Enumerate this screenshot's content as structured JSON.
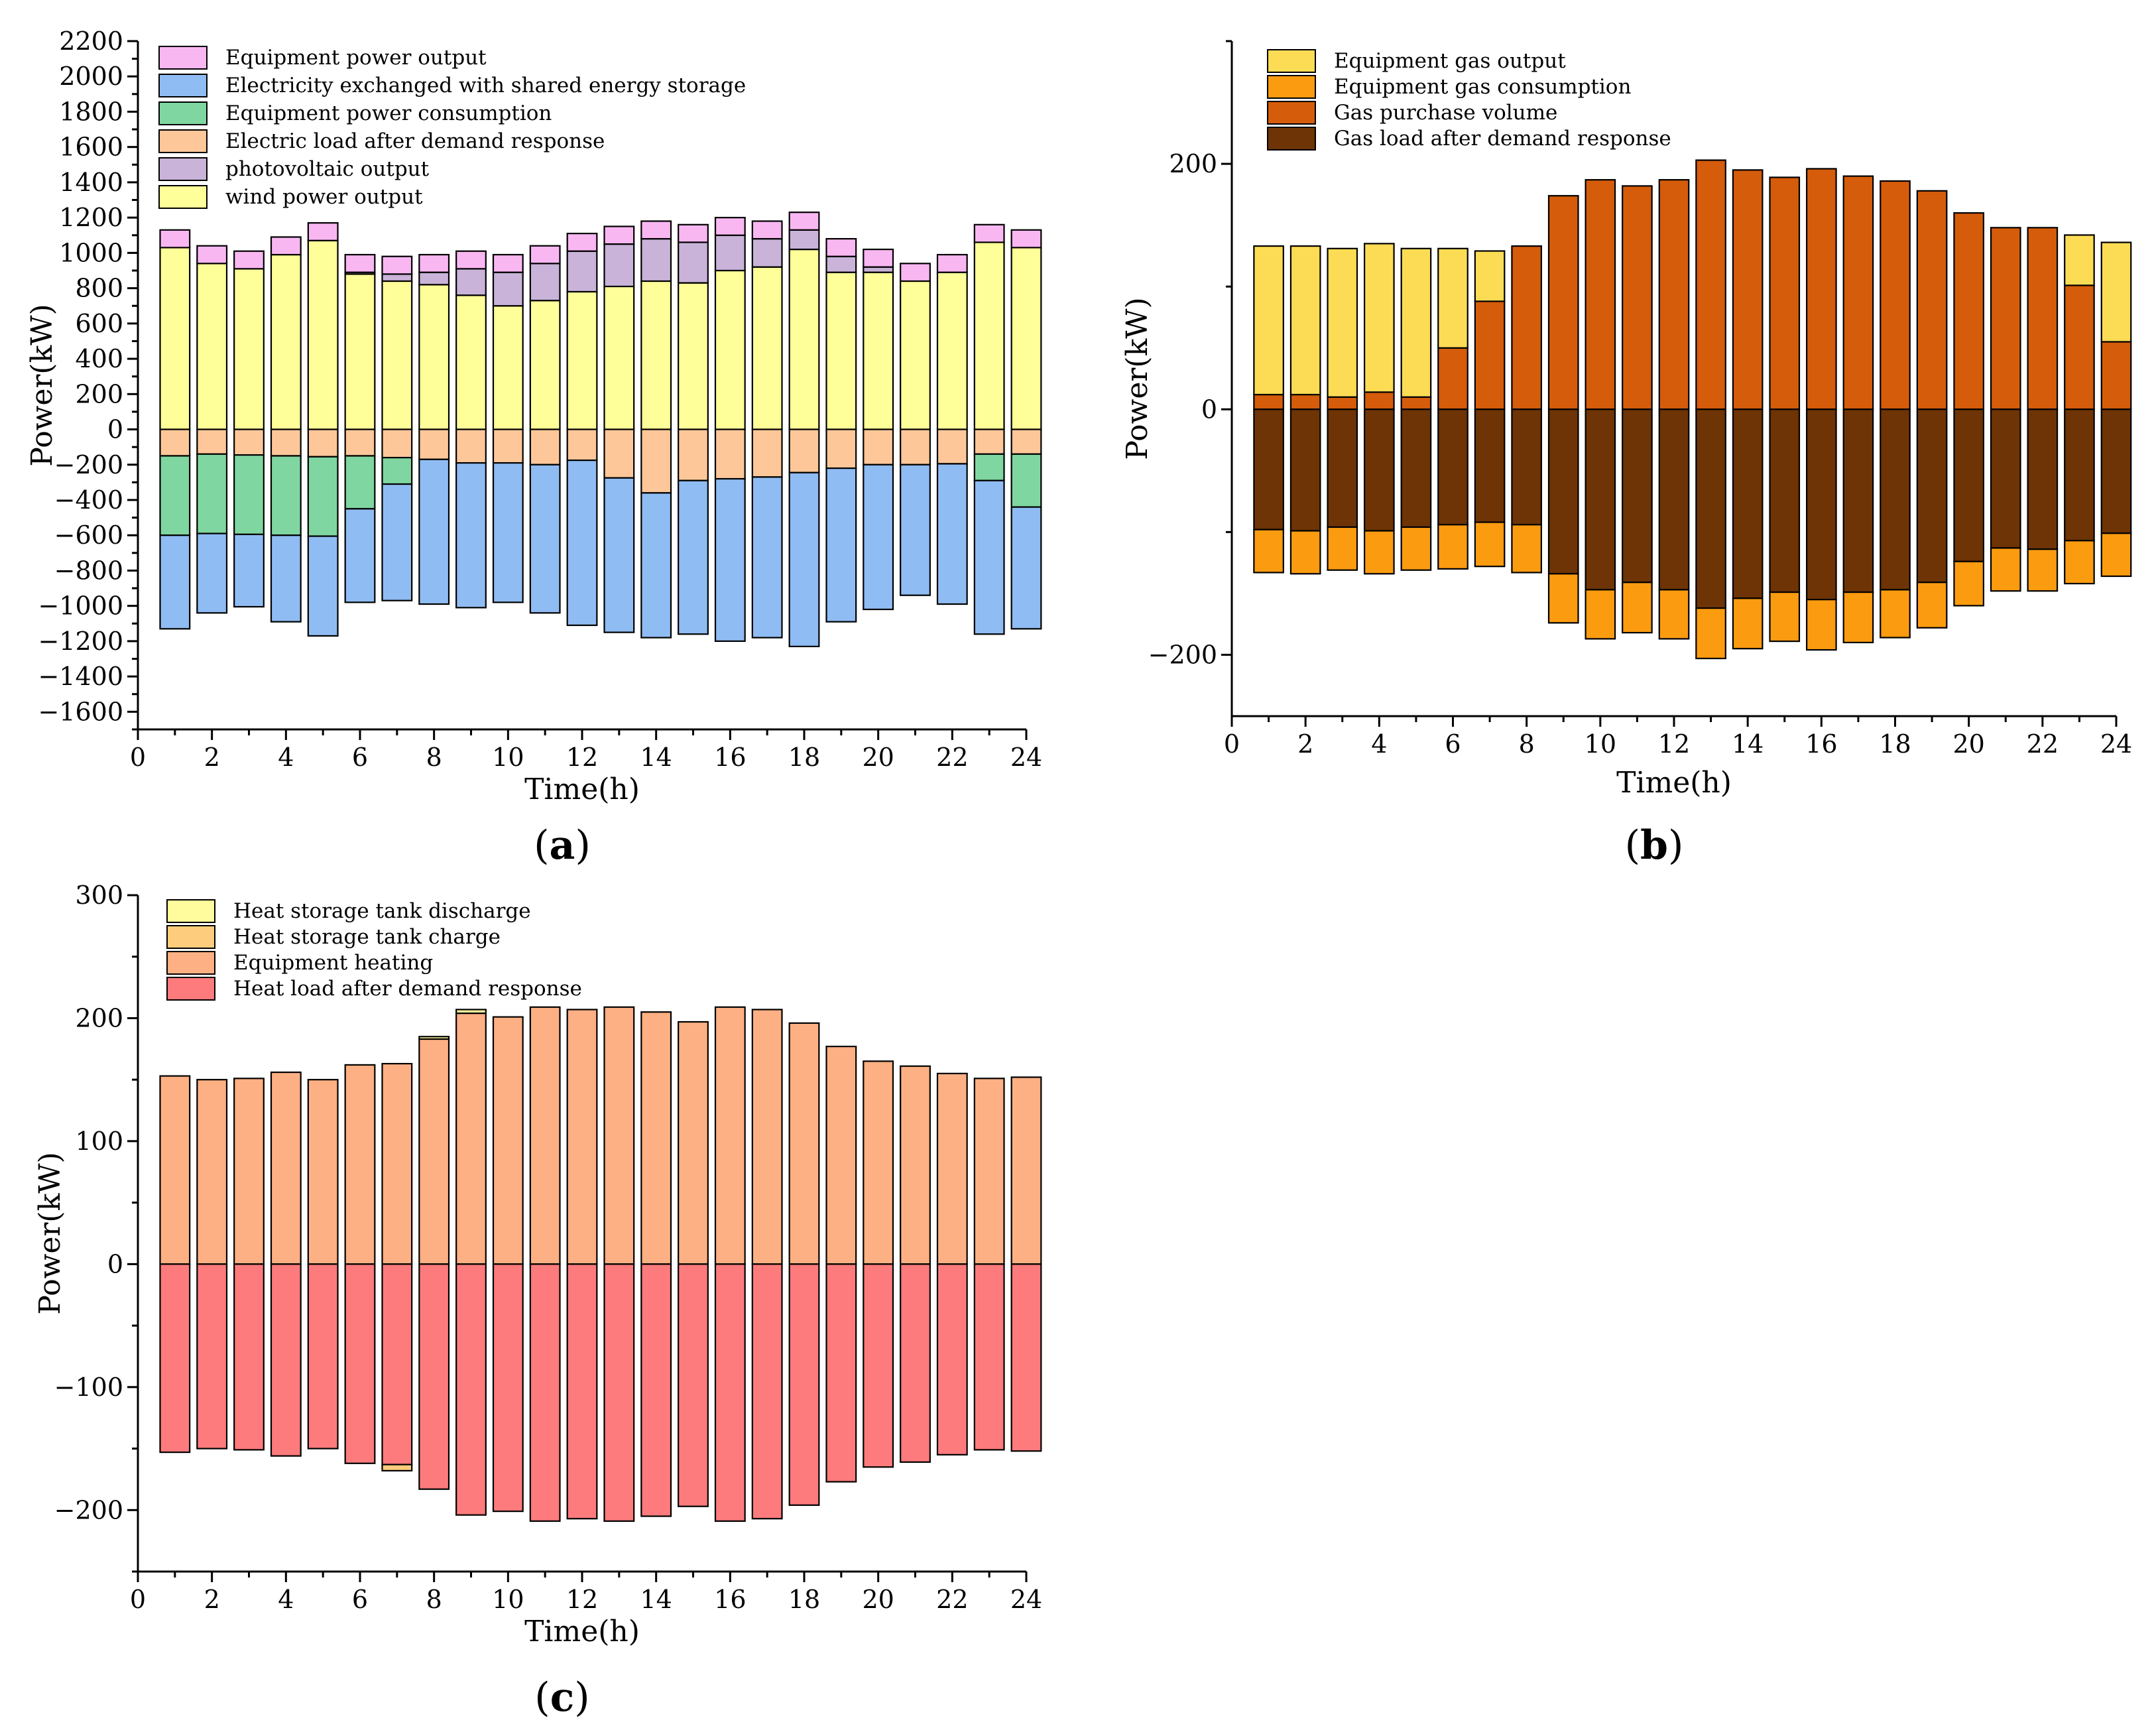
{
  "chart_data": [
    {
      "panel": "a",
      "type": "bar",
      "stacked": true,
      "panel_label": "(a)",
      "xlabel": "Time(h)",
      "ylabel": "Power(kW)",
      "xlim": [
        0,
        24
      ],
      "ylim": [
        -1700,
        2200
      ],
      "xticks": [
        0,
        2,
        4,
        6,
        8,
        10,
        12,
        14,
        16,
        18,
        20,
        22,
        24
      ],
      "yticks": [
        -1600,
        -1400,
        -1200,
        -1000,
        -800,
        -600,
        -400,
        -200,
        0,
        200,
        400,
        600,
        800,
        1000,
        1200,
        1400,
        1600,
        1800,
        2000,
        2200
      ],
      "legend_position": "top-left",
      "categories": [
        1,
        2,
        3,
        4,
        5,
        6,
        7,
        8,
        9,
        10,
        11,
        12,
        13,
        14,
        15,
        16,
        17,
        18,
        19,
        20,
        21,
        22,
        23,
        24
      ],
      "series": [
        {
          "name": "wind power output",
          "color": "#ffff99",
          "values": [
            1030,
            940,
            910,
            990,
            1070,
            880,
            840,
            820,
            760,
            700,
            730,
            780,
            810,
            840,
            830,
            900,
            920,
            1020,
            890,
            890,
            840,
            890,
            1060,
            1030
          ]
        },
        {
          "name": "photovoltaic output",
          "color": "#c9b3d8",
          "values": [
            0,
            0,
            0,
            0,
            0,
            10,
            40,
            70,
            150,
            190,
            210,
            230,
            240,
            240,
            230,
            200,
            160,
            110,
            90,
            30,
            0,
            0,
            0,
            0
          ]
        },
        {
          "name": "Equipment power output",
          "color": "#f9b7f2",
          "values": [
            100,
            100,
            100,
            100,
            100,
            100,
            100,
            100,
            100,
            100,
            100,
            100,
            100,
            100,
            100,
            100,
            100,
            100,
            100,
            100,
            100,
            100,
            100,
            100
          ]
        },
        {
          "name": "Electric load after demand response",
          "color": "#fdc799",
          "values": [
            -150,
            -140,
            -145,
            -150,
            -155,
            -150,
            -160,
            -170,
            -190,
            -190,
            -200,
            -175,
            -275,
            -360,
            -290,
            -280,
            -270,
            -245,
            -220,
            -200,
            -200,
            -195,
            -140,
            -140
          ]
        },
        {
          "name": "Equipment power consumption",
          "color": "#7fd6a0",
          "values": [
            -450,
            -450,
            -450,
            -450,
            -450,
            -300,
            -150,
            0,
            0,
            0,
            0,
            0,
            0,
            0,
            0,
            0,
            0,
            0,
            0,
            0,
            0,
            0,
            -150,
            -300
          ]
        },
        {
          "name": "Electricity exchanged with shared energy storage",
          "color": "#8fbcf2",
          "values": [
            -530,
            -450,
            -410,
            -490,
            -565,
            -530,
            -660,
            -820,
            -820,
            -790,
            -840,
            -935,
            -875,
            -820,
            -870,
            -920,
            -910,
            -985,
            -870,
            -820,
            -740,
            -795,
            -870,
            -690
          ]
        }
      ],
      "legend": [
        "Equipment power output",
        "Electricity exchanged with shared energy storage",
        "Equipment power consumption",
        "Electric load after demand response",
        "photovoltaic output",
        "wind power output"
      ]
    },
    {
      "panel": "b",
      "type": "bar",
      "stacked": true,
      "panel_label": "(b)",
      "xlabel": "Time(h)",
      "ylabel": "Power(kW)",
      "xlim": [
        0,
        24
      ],
      "ylim": [
        -250,
        300
      ],
      "xticks": [
        0,
        2,
        4,
        6,
        8,
        10,
        12,
        14,
        16,
        18,
        20,
        22,
        24
      ],
      "yticks": [
        -200,
        0,
        200
      ],
      "legend_position": "top-left",
      "categories": [
        1,
        2,
        3,
        4,
        5,
        6,
        7,
        8,
        9,
        10,
        11,
        12,
        13,
        14,
        15,
        16,
        17,
        18,
        19,
        20,
        21,
        22,
        23,
        24
      ],
      "series": [
        {
          "name": "Gas purchase volume",
          "color": "#d55c0a",
          "values": [
            12,
            12,
            10,
            14,
            10,
            50,
            88,
            133,
            174,
            187,
            182,
            187,
            203,
            195,
            189,
            196,
            190,
            186,
            178,
            160,
            148,
            148,
            101,
            55
          ]
        },
        {
          "name": "Equipment gas output",
          "color": "#fddc55",
          "values": [
            121,
            121,
            121,
            121,
            121,
            81,
            41,
            0,
            0,
            0,
            0,
            0,
            0,
            0,
            0,
            0,
            0,
            0,
            0,
            0,
            0,
            0,
            41,
            81
          ]
        },
        {
          "name": "Gas load after demand response",
          "color": "#6e3405",
          "values": [
            -98,
            -99,
            -96,
            -99,
            -96,
            -94,
            -92,
            -94,
            -134,
            -147,
            -141,
            -147,
            -162,
            -154,
            -149,
            -155,
            -149,
            -147,
            -141,
            -124,
            -113,
            -114,
            -107,
            -101
          ]
        },
        {
          "name": "Equipment gas consumption",
          "color": "#fb9b10",
          "values": [
            -35,
            -35,
            -35,
            -35,
            -35,
            -36,
            -36,
            -39,
            -40,
            -40,
            -41,
            -40,
            -41,
            -41,
            -40,
            -41,
            -41,
            -39,
            -37,
            -36,
            -35,
            -34,
            -35,
            -35
          ]
        }
      ],
      "legend": [
        "Equipment gas output",
        "Equipment gas consumption",
        "Gas purchase volume",
        "Gas load after demand response"
      ]
    },
    {
      "panel": "c",
      "type": "bar",
      "stacked": true,
      "panel_label": "(c)",
      "xlabel": "Time(h)",
      "ylabel": "Power(kW)",
      "xlim": [
        0,
        24
      ],
      "ylim": [
        -250,
        300
      ],
      "xticks": [
        0,
        2,
        4,
        6,
        8,
        10,
        12,
        14,
        16,
        18,
        20,
        22,
        24
      ],
      "yticks": [
        -200,
        -100,
        0,
        100,
        200,
        300
      ],
      "legend_position": "top-left",
      "categories": [
        1,
        2,
        3,
        4,
        5,
        6,
        7,
        8,
        9,
        10,
        11,
        12,
        13,
        14,
        15,
        16,
        17,
        18,
        19,
        20,
        21,
        22,
        23,
        24
      ],
      "series": [
        {
          "name": "Equipment heating",
          "color": "#fdb083",
          "values": [
            153,
            150,
            151,
            156,
            150,
            162,
            163,
            183,
            204,
            201,
            209,
            207,
            209,
            205,
            197,
            209,
            207,
            196,
            177,
            165,
            161,
            155,
            151,
            152
          ]
        },
        {
          "name": "Heat storage tank discharge",
          "color": "#fffc9e",
          "values": [
            0,
            0,
            0,
            0,
            0,
            0,
            0,
            2,
            3,
            0,
            0,
            0,
            0,
            0,
            0,
            0,
            0,
            0,
            0,
            0,
            0,
            0,
            0,
            0
          ]
        },
        {
          "name": "Heat load after demand response",
          "color": "#fd7b7c",
          "values": [
            -153,
            -150,
            -151,
            -156,
            -150,
            -162,
            -163,
            -183,
            -204,
            -201,
            -209,
            -207,
            -209,
            -205,
            -197,
            -209,
            -207,
            -196,
            -177,
            -165,
            -161,
            -155,
            -151,
            -152
          ]
        },
        {
          "name": "Heat storage tank charge",
          "color": "#fdcd7d",
          "values": [
            0,
            0,
            0,
            0,
            0,
            0,
            -5,
            0,
            0,
            0,
            0,
            0,
            0,
            0,
            0,
            0,
            0,
            0,
            0,
            0,
            0,
            0,
            0,
            0
          ]
        }
      ],
      "legend": [
        "Heat storage tank discharge",
        "Heat storage tank charge",
        "Equipment heating",
        "Heat load after demand response"
      ]
    }
  ]
}
